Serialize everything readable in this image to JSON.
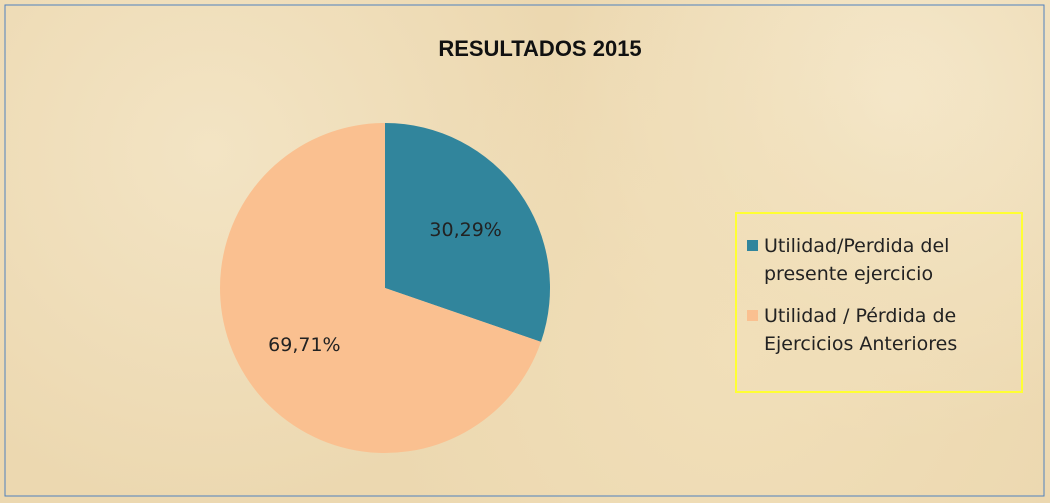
{
  "chart_data": {
    "type": "pie",
    "title": "RESULTADOS 2015",
    "series": [
      {
        "name": "Utilidad/Perdida del presente ejercicio",
        "color": "#31859c"
      },
      {
        "name": "Utilidad / Pérdida de Ejercicios Anteriores",
        "color": "#fac090"
      }
    ],
    "values": [
      30.29,
      69.71
    ],
    "value_labels": [
      "30,29%",
      "69,71%"
    ],
    "legend": "right"
  }
}
